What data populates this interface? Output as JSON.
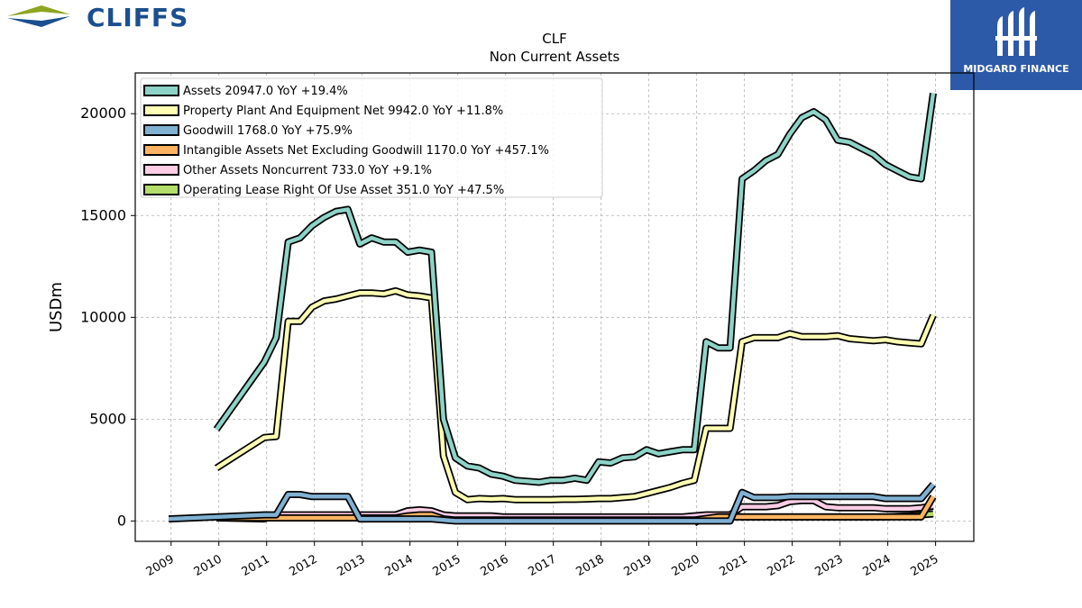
{
  "header": {
    "logo_text": "CLIFFS",
    "logo_colors": {
      "chevron_top": "#8ea51f",
      "chevron_bottom": "#1b4f8f",
      "text": "#1b4f8f"
    },
    "brand_text": "MIDGARD FINANCE",
    "brand_bg": "#2c5aa8",
    "brand_icon": "midgard-m-icon"
  },
  "chart_data": {
    "type": "line",
    "title": "CLF",
    "subtitle": "Non Current  Assets",
    "ylabel": "USDm",
    "xlabel": "",
    "xlim": [
      2008.25,
      2025.8
    ],
    "ylim": [
      -1000,
      22000
    ],
    "xticks": [
      2009,
      2010,
      2011,
      2012,
      2013,
      2014,
      2015,
      2016,
      2017,
      2018,
      2019,
      2020,
      2021,
      2022,
      2023,
      2024,
      2025
    ],
    "yticks": [
      0,
      5000,
      10000,
      15000,
      20000
    ],
    "grid": true,
    "legend_position": "top-left",
    "series": [
      {
        "name": "Assets",
        "legend": "Assets  20947.0 YoY +19.4%",
        "color": "#8dd3c7",
        "points": [
          [
            2009.95,
            4500
          ],
          [
            2010.95,
            7800
          ],
          [
            2011.2,
            9000
          ],
          [
            2011.45,
            13700
          ],
          [
            2011.7,
            13900
          ],
          [
            2011.95,
            14500
          ],
          [
            2012.2,
            14900
          ],
          [
            2012.45,
            15200
          ],
          [
            2012.7,
            15300
          ],
          [
            2012.95,
            13600
          ],
          [
            2013.2,
            13900
          ],
          [
            2013.45,
            13700
          ],
          [
            2013.7,
            13700
          ],
          [
            2013.95,
            13200
          ],
          [
            2014.2,
            13300
          ],
          [
            2014.45,
            13200
          ],
          [
            2014.7,
            5000
          ],
          [
            2014.95,
            3100
          ],
          [
            2015.2,
            2700
          ],
          [
            2015.45,
            2600
          ],
          [
            2015.7,
            2300
          ],
          [
            2015.95,
            2200
          ],
          [
            2016.2,
            2000
          ],
          [
            2016.45,
            1950
          ],
          [
            2016.7,
            1900
          ],
          [
            2016.95,
            2000
          ],
          [
            2017.2,
            2000
          ],
          [
            2017.45,
            2100
          ],
          [
            2017.7,
            2000
          ],
          [
            2017.95,
            2900
          ],
          [
            2018.2,
            2850
          ],
          [
            2018.45,
            3100
          ],
          [
            2018.7,
            3150
          ],
          [
            2018.95,
            3500
          ],
          [
            2019.2,
            3300
          ],
          [
            2019.45,
            3400
          ],
          [
            2019.7,
            3500
          ],
          [
            2019.95,
            3500
          ],
          [
            2020.2,
            8800
          ],
          [
            2020.45,
            8500
          ],
          [
            2020.7,
            8500
          ],
          [
            2020.95,
            16800
          ],
          [
            2021.2,
            17200
          ],
          [
            2021.45,
            17700
          ],
          [
            2021.7,
            18000
          ],
          [
            2021.95,
            19000
          ],
          [
            2022.2,
            19800
          ],
          [
            2022.45,
            20100
          ],
          [
            2022.7,
            19700
          ],
          [
            2022.95,
            18700
          ],
          [
            2023.2,
            18600
          ],
          [
            2023.45,
            18300
          ],
          [
            2023.7,
            18000
          ],
          [
            2023.95,
            17500
          ],
          [
            2024.2,
            17200
          ],
          [
            2024.45,
            16900
          ],
          [
            2024.7,
            16800
          ],
          [
            2024.95,
            21000
          ]
        ]
      },
      {
        "name": "Property Plant And Equipment Net",
        "legend": "Property Plant And Equipment Net  9942.0 YoY +11.8%",
        "color": "#ffffb3",
        "points": [
          [
            2009.95,
            2600
          ],
          [
            2010.95,
            4100
          ],
          [
            2011.2,
            4150
          ],
          [
            2011.45,
            9800
          ],
          [
            2011.7,
            9800
          ],
          [
            2011.95,
            10500
          ],
          [
            2012.2,
            10800
          ],
          [
            2012.45,
            10900
          ],
          [
            2012.7,
            11050
          ],
          [
            2012.95,
            11200
          ],
          [
            2013.2,
            11200
          ],
          [
            2013.45,
            11150
          ],
          [
            2013.7,
            11300
          ],
          [
            2013.95,
            11100
          ],
          [
            2014.2,
            11050
          ],
          [
            2014.45,
            10950
          ],
          [
            2014.7,
            3200
          ],
          [
            2014.95,
            1400
          ],
          [
            2015.2,
            1050
          ],
          [
            2015.45,
            1100
          ],
          [
            2015.7,
            1080
          ],
          [
            2015.95,
            1100
          ],
          [
            2016.2,
            1050
          ],
          [
            2016.45,
            1050
          ],
          [
            2016.7,
            1050
          ],
          [
            2016.95,
            1050
          ],
          [
            2017.2,
            1060
          ],
          [
            2017.45,
            1060
          ],
          [
            2017.7,
            1080
          ],
          [
            2017.95,
            1100
          ],
          [
            2018.2,
            1100
          ],
          [
            2018.45,
            1150
          ],
          [
            2018.7,
            1200
          ],
          [
            2018.95,
            1350
          ],
          [
            2019.2,
            1500
          ],
          [
            2019.45,
            1650
          ],
          [
            2019.7,
            1850
          ],
          [
            2019.95,
            2000
          ],
          [
            2020.2,
            4550
          ],
          [
            2020.45,
            4550
          ],
          [
            2020.7,
            4550
          ],
          [
            2020.95,
            8800
          ],
          [
            2021.2,
            9000
          ],
          [
            2021.45,
            9000
          ],
          [
            2021.7,
            9000
          ],
          [
            2021.95,
            9200
          ],
          [
            2022.2,
            9050
          ],
          [
            2022.45,
            9050
          ],
          [
            2022.7,
            9050
          ],
          [
            2022.95,
            9100
          ],
          [
            2023.2,
            8950
          ],
          [
            2023.45,
            8900
          ],
          [
            2023.7,
            8850
          ],
          [
            2023.95,
            8900
          ],
          [
            2024.2,
            8800
          ],
          [
            2024.45,
            8750
          ],
          [
            2024.7,
            8700
          ],
          [
            2024.95,
            10100
          ]
        ]
      },
      {
        "name": "Goodwill",
        "legend": "Goodwill  1768.0 YoY +75.9%",
        "color": "#80b1d3",
        "points": [
          [
            2008.95,
            100
          ],
          [
            2009.95,
            200
          ],
          [
            2010.95,
            300
          ],
          [
            2011.2,
            300
          ],
          [
            2011.45,
            1300
          ],
          [
            2011.7,
            1300
          ],
          [
            2011.95,
            1200
          ],
          [
            2012.2,
            1200
          ],
          [
            2012.45,
            1200
          ],
          [
            2012.7,
            1200
          ],
          [
            2012.95,
            100
          ],
          [
            2013.2,
            100
          ],
          [
            2013.45,
            100
          ],
          [
            2013.7,
            100
          ],
          [
            2013.95,
            100
          ],
          [
            2014.2,
            100
          ],
          [
            2014.45,
            100
          ],
          [
            2014.7,
            50
          ],
          [
            2014.95,
            0
          ],
          [
            2015.95,
            0
          ],
          [
            2016.95,
            0
          ],
          [
            2017.95,
            0
          ],
          [
            2018.95,
            0
          ],
          [
            2019.95,
            0
          ],
          [
            2020.2,
            0
          ],
          [
            2020.45,
            0
          ],
          [
            2020.7,
            0
          ],
          [
            2020.95,
            1400
          ],
          [
            2021.2,
            1150
          ],
          [
            2021.45,
            1150
          ],
          [
            2021.7,
            1150
          ],
          [
            2021.95,
            1200
          ],
          [
            2022.2,
            1200
          ],
          [
            2022.45,
            1200
          ],
          [
            2022.7,
            1200
          ],
          [
            2022.95,
            1200
          ],
          [
            2023.2,
            1200
          ],
          [
            2023.45,
            1200
          ],
          [
            2023.7,
            1200
          ],
          [
            2023.95,
            1100
          ],
          [
            2024.2,
            1100
          ],
          [
            2024.45,
            1100
          ],
          [
            2024.7,
            1100
          ],
          [
            2024.95,
            1800
          ]
        ]
      },
      {
        "name": "Intangible Assets Net Excluding Goodwill",
        "legend": "Intangible Assets Net Excluding Goodwill  1170.0 YoY +457.1%",
        "color": "#fdb462",
        "points": [
          [
            2009.95,
            150
          ],
          [
            2010.95,
            150
          ],
          [
            2011.95,
            150
          ],
          [
            2012.95,
            150
          ],
          [
            2013.7,
            150
          ],
          [
            2013.95,
            250
          ],
          [
            2014.2,
            300
          ],
          [
            2014.45,
            300
          ],
          [
            2014.7,
            100
          ],
          [
            2014.95,
            50
          ],
          [
            2015.95,
            50
          ],
          [
            2016.95,
            50
          ],
          [
            2017.95,
            50
          ],
          [
            2018.95,
            50
          ],
          [
            2019.95,
            50
          ],
          [
            2020.45,
            200
          ],
          [
            2020.95,
            200
          ],
          [
            2021.95,
            200
          ],
          [
            2022.95,
            200
          ],
          [
            2023.95,
            200
          ],
          [
            2024.7,
            200
          ],
          [
            2024.95,
            1200
          ]
        ]
      },
      {
        "name": "Other Assets Noncurrent",
        "legend": "Other Assets Noncurrent  733.0 YoY +9.1%",
        "color": "#fccde5",
        "points": [
          [
            2009.95,
            150
          ],
          [
            2010.95,
            100
          ],
          [
            2011.2,
            300
          ],
          [
            2011.45,
            300
          ],
          [
            2011.7,
            300
          ],
          [
            2011.95,
            300
          ],
          [
            2012.2,
            300
          ],
          [
            2012.45,
            300
          ],
          [
            2012.7,
            300
          ],
          [
            2012.95,
            300
          ],
          [
            2013.2,
            300
          ],
          [
            2013.45,
            300
          ],
          [
            2013.7,
            300
          ],
          [
            2013.95,
            500
          ],
          [
            2014.2,
            550
          ],
          [
            2014.45,
            500
          ],
          [
            2014.7,
            300
          ],
          [
            2014.95,
            250
          ],
          [
            2015.2,
            250
          ],
          [
            2015.45,
            250
          ],
          [
            2015.7,
            250
          ],
          [
            2015.95,
            200
          ],
          [
            2016.2,
            200
          ],
          [
            2016.45,
            200
          ],
          [
            2016.7,
            200
          ],
          [
            2016.95,
            200
          ],
          [
            2017.2,
            200
          ],
          [
            2017.45,
            200
          ],
          [
            2017.7,
            200
          ],
          [
            2017.95,
            200
          ],
          [
            2018.2,
            200
          ],
          [
            2018.45,
            200
          ],
          [
            2018.7,
            200
          ],
          [
            2018.95,
            200
          ],
          [
            2019.2,
            200
          ],
          [
            2019.45,
            200
          ],
          [
            2019.7,
            200
          ],
          [
            2019.95,
            250
          ],
          [
            2020.2,
            300
          ],
          [
            2020.45,
            300
          ],
          [
            2020.7,
            300
          ],
          [
            2020.95,
            700
          ],
          [
            2021.2,
            700
          ],
          [
            2021.45,
            700
          ],
          [
            2021.7,
            750
          ],
          [
            2021.95,
            950
          ],
          [
            2022.2,
            1000
          ],
          [
            2022.45,
            1000
          ],
          [
            2022.7,
            700
          ],
          [
            2022.95,
            650
          ],
          [
            2023.2,
            650
          ],
          [
            2023.45,
            650
          ],
          [
            2023.7,
            650
          ],
          [
            2023.95,
            600
          ],
          [
            2024.2,
            600
          ],
          [
            2024.45,
            600
          ],
          [
            2024.7,
            650
          ],
          [
            2024.95,
            730
          ]
        ]
      },
      {
        "name": "Operating Lease Right Of Use Asset",
        "legend": "Operating Lease Right Of Use Asset  351.0 YoY +47.5%",
        "color": "#b3de69",
        "points": [
          [
            2019.95,
            -100
          ],
          [
            2020.2,
            250
          ],
          [
            2020.45,
            250
          ],
          [
            2020.7,
            250
          ],
          [
            2020.95,
            200
          ],
          [
            2021.45,
            200
          ],
          [
            2021.95,
            200
          ],
          [
            2022.45,
            200
          ],
          [
            2022.95,
            200
          ],
          [
            2023.45,
            200
          ],
          [
            2023.95,
            200
          ],
          [
            2024.45,
            250
          ],
          [
            2024.7,
            300
          ],
          [
            2024.95,
            350
          ]
        ]
      }
    ]
  }
}
